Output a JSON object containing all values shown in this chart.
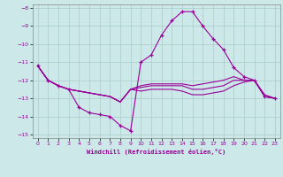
{
  "xlabel": "Windchill (Refroidissement éolien,°C)",
  "xlim": [
    -0.5,
    23.5
  ],
  "ylim": [
    -15.2,
    -7.8
  ],
  "yticks": [
    -15,
    -14,
    -13,
    -12,
    -11,
    -10,
    -9,
    -8
  ],
  "xticks": [
    0,
    1,
    2,
    3,
    4,
    5,
    6,
    7,
    8,
    9,
    10,
    11,
    12,
    13,
    14,
    15,
    16,
    17,
    18,
    19,
    20,
    21,
    22,
    23
  ],
  "background_color": "#cce8e8",
  "line_color": "#990099",
  "grid_color": "#aacccc",
  "lines": [
    {
      "x": [
        0,
        1,
        2,
        3,
        4,
        5,
        6,
        7,
        8,
        9,
        10,
        11,
        12,
        13,
        14,
        15,
        16,
        17,
        18,
        19,
        20,
        21,
        22,
        23
      ],
      "y": [
        -11.2,
        -12.0,
        -12.3,
        -12.5,
        -13.5,
        -13.8,
        -13.9,
        -14.0,
        -14.5,
        -14.8,
        -11.0,
        -10.6,
        -9.5,
        -8.7,
        -8.2,
        -8.2,
        -9.0,
        -9.7,
        -10.3,
        -11.3,
        -11.8,
        -12.0,
        -12.9,
        -13.0
      ],
      "marker": true
    },
    {
      "x": [
        0,
        1,
        2,
        3,
        4,
        5,
        6,
        7,
        8,
        9,
        10,
        11,
        12,
        13,
        14,
        15,
        16,
        17,
        18,
        19,
        20,
        21,
        22,
        23
      ],
      "y": [
        -11.2,
        -12.0,
        -12.3,
        -12.5,
        -12.6,
        -12.7,
        -12.8,
        -12.9,
        -13.2,
        -12.5,
        -12.3,
        -12.2,
        -12.2,
        -12.2,
        -12.2,
        -12.3,
        -12.2,
        -12.1,
        -12.0,
        -11.8,
        -12.0,
        -12.0,
        -12.8,
        -13.0
      ],
      "marker": false
    },
    {
      "x": [
        0,
        1,
        2,
        3,
        4,
        5,
        6,
        7,
        8,
        9,
        10,
        11,
        12,
        13,
        14,
        15,
        16,
        17,
        18,
        19,
        20,
        21,
        22,
        23
      ],
      "y": [
        -11.2,
        -12.0,
        -12.3,
        -12.5,
        -12.6,
        -12.7,
        -12.8,
        -12.9,
        -13.2,
        -12.5,
        -12.4,
        -12.3,
        -12.3,
        -12.3,
        -12.3,
        -12.5,
        -12.5,
        -12.4,
        -12.3,
        -12.0,
        -12.0,
        -12.0,
        -12.9,
        -13.0
      ],
      "marker": false
    },
    {
      "x": [
        0,
        1,
        2,
        3,
        4,
        5,
        6,
        7,
        8,
        9,
        10,
        11,
        12,
        13,
        14,
        15,
        16,
        17,
        18,
        19,
        20,
        21,
        22,
        23
      ],
      "y": [
        -11.2,
        -12.0,
        -12.3,
        -12.5,
        -12.6,
        -12.7,
        -12.8,
        -12.9,
        -13.2,
        -12.5,
        -12.6,
        -12.5,
        -12.5,
        -12.5,
        -12.6,
        -12.8,
        -12.8,
        -12.7,
        -12.6,
        -12.3,
        -12.1,
        -12.0,
        -12.9,
        -13.0
      ],
      "marker": false
    }
  ]
}
